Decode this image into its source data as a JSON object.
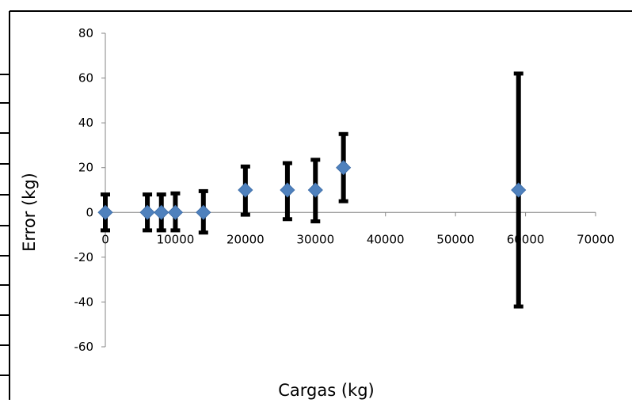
{
  "chart_data": {
    "type": "scatter",
    "title": "",
    "xlabel": "Cargas (kg)",
    "ylabel": "Error (kg)",
    "xlim": [
      0,
      70000
    ],
    "ylim": [
      -60,
      80
    ],
    "xticks": [
      0,
      10000,
      20000,
      30000,
      40000,
      50000,
      60000,
      70000
    ],
    "yticks": [
      -60,
      -40,
      -20,
      0,
      20,
      40,
      60,
      80
    ],
    "grid": false,
    "marker": "diamond",
    "colors": {
      "marker": "#4f81bd",
      "error_bar": "#000000",
      "axis": "#868686"
    },
    "points": [
      {
        "x": 0,
        "y": 0,
        "err_low": -8,
        "err_high": 8
      },
      {
        "x": 6000,
        "y": 0,
        "err_low": -8,
        "err_high": 8
      },
      {
        "x": 8000,
        "y": 0,
        "err_low": -8,
        "err_high": 8
      },
      {
        "x": 10000,
        "y": 0,
        "err_low": -8,
        "err_high": 8.5
      },
      {
        "x": 14000,
        "y": 0,
        "err_low": -9,
        "err_high": 9.5
      },
      {
        "x": 20000,
        "y": 10,
        "err_low": -1,
        "err_high": 20.5
      },
      {
        "x": 26000,
        "y": 10,
        "err_low": -3,
        "err_high": 22
      },
      {
        "x": 30000,
        "y": 10,
        "err_low": -4,
        "err_high": 23.5
      },
      {
        "x": 34000,
        "y": 20,
        "err_low": 5,
        "err_high": 35
      },
      {
        "x": 59000,
        "y": 10,
        "err_low": -42,
        "err_high": 62
      }
    ]
  }
}
